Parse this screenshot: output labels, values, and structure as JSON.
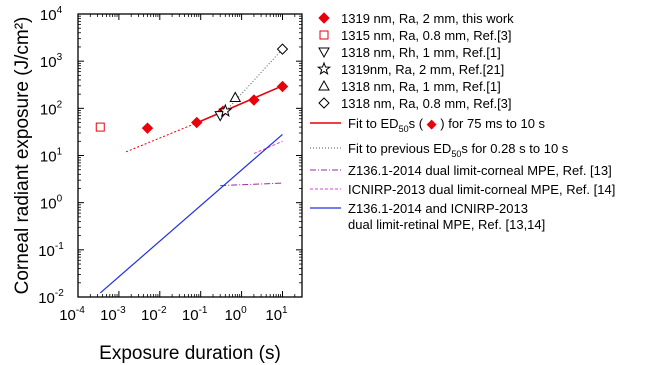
{
  "chart_data": {
    "type": "scatter",
    "xscale": "log",
    "yscale": "log",
    "xlim": [
      0.0001,
      30
    ],
    "ylim": [
      0.01,
      10000
    ],
    "xlabel": "Exposure duration (s)",
    "ylabel": "Corneal radiant exposure (J/cm²)",
    "x_ticks": [
      {
        "v": 0.0001,
        "base": "10",
        "exp": "-4"
      },
      {
        "v": 0.001,
        "base": "10",
        "exp": "-3"
      },
      {
        "v": 0.01,
        "base": "10",
        "exp": "-2"
      },
      {
        "v": 0.1,
        "base": "10",
        "exp": "-1"
      },
      {
        "v": 1,
        "base": "10",
        "exp": "0"
      },
      {
        "v": 10,
        "base": "10",
        "exp": "1"
      }
    ],
    "y_ticks": [
      {
        "v": 0.01,
        "base": "10",
        "exp": "-2"
      },
      {
        "v": 0.1,
        "base": "10",
        "exp": "-1"
      },
      {
        "v": 1,
        "base": "10",
        "exp": "0"
      },
      {
        "v": 10,
        "base": "10",
        "exp": "1"
      },
      {
        "v": 100,
        "base": "10",
        "exp": "2"
      },
      {
        "v": 1000,
        "base": "10",
        "exp": "3"
      },
      {
        "v": 10000,
        "base": "10",
        "exp": "4"
      }
    ],
    "series": [
      {
        "kind": "marker",
        "marker": "diamond-filled",
        "color": "#e8000b",
        "label": "1319 nm, Ra, 2 mm,  this work",
        "x": [
          0.005,
          0.08,
          0.35,
          2.0,
          10.0
        ],
        "y": [
          38,
          50,
          87,
          150,
          290
        ]
      },
      {
        "kind": "marker",
        "marker": "square-open",
        "color": "#e8000b",
        "label": "1315 nm, Ra, 0.8 mm, Ref.[3]",
        "x": [
          0.00035
        ],
        "y": [
          40
        ]
      },
      {
        "kind": "marker",
        "marker": "tri-down-open",
        "color": "#000000",
        "label": "1318 nm, Rh, 1 mm, Ref.[1]",
        "x": [
          0.3
        ],
        "y": [
          70
        ]
      },
      {
        "kind": "marker",
        "marker": "star-open",
        "color": "#000000",
        "label": "1319nm, Ra, 2 mm, Ref.[21]",
        "x": [
          0.4
        ],
        "y": [
          88
        ]
      },
      {
        "kind": "marker",
        "marker": "tri-up-open",
        "color": "#000000",
        "label": "1318 nm, Ra, 1 mm, Ref.[1]",
        "x": [
          0.7
        ],
        "y": [
          170
        ]
      },
      {
        "kind": "marker",
        "marker": "diamond-open",
        "color": "#000000",
        "label": "1318 nm, Ra, 0.8 mm, Ref.[3]",
        "x": [
          10.0
        ],
        "y": [
          1800
        ]
      },
      {
        "kind": "line",
        "color": "#e8000b",
        "width": 1.6,
        "dash": "",
        "label_parts": [
          "Fit to ED",
          "50",
          "s ( ",
          "diamond",
          " ) for  75 ms to 10 s"
        ],
        "x": [
          0.075,
          10.0
        ],
        "y": [
          48,
          300
        ]
      },
      {
        "kind": "line",
        "color": "#e8000b",
        "width": 1,
        "dash": "2,2",
        "label_parts": null,
        "x": [
          0.0015,
          0.075
        ],
        "y": [
          12,
          48
        ]
      },
      {
        "kind": "line",
        "color": "#555555",
        "width": 1,
        "dash": "1,2",
        "label_parts": [
          "Fit to previous ED",
          "50",
          "s for 0.28 s to 10 s"
        ],
        "x": [
          0.3,
          10.0
        ],
        "y": [
          65,
          1800
        ]
      },
      {
        "kind": "line",
        "color": "#9c2aa0",
        "width": 1,
        "dash": "6,2,1,2",
        "label": "Z136.1-2014 dual limit-corneal MPE, Ref. [13]",
        "x": [
          0.3,
          10.0
        ],
        "y": [
          2.3,
          2.6
        ]
      },
      {
        "kind": "line",
        "color": "#e040e0",
        "width": 1,
        "dash": "3,2",
        "label": "ICNIRP-2013 dual limit-corneal MPE, Ref. [14]",
        "x": [
          2.0,
          10.0
        ],
        "y": [
          11,
          20
        ]
      },
      {
        "kind": "line",
        "color": "#2230e0",
        "width": 1.2,
        "dash": "",
        "label_lines": [
          "Z136.1-2014 and ICNIRP-2013",
          "  dual limit-retinal MPE, Ref. [13,14]"
        ],
        "x": [
          0.00035,
          10.0
        ],
        "y": [
          0.0122,
          28
        ]
      }
    ]
  }
}
